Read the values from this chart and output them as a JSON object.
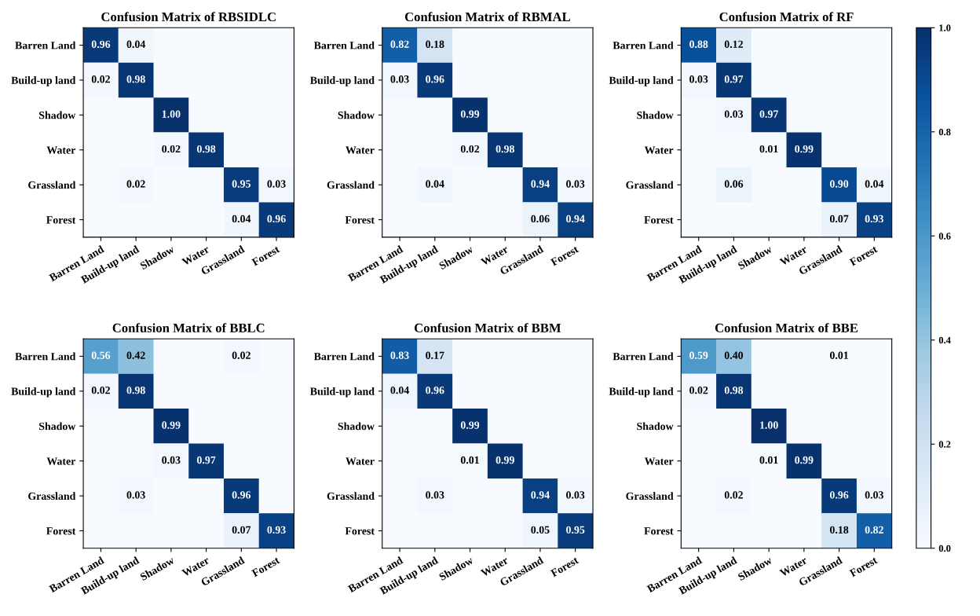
{
  "chart_data": [
    {
      "type": "heatmap",
      "title": "Confusion Matrix of RBSIDLC",
      "categories": [
        "Barren Land",
        "Build-up land",
        "Shadow",
        "Water",
        "Grassland",
        "Forest"
      ],
      "y_categories": [
        "Barren Land",
        "Build-up land",
        "Shadow",
        "Water",
        "Grassland",
        "Forest"
      ],
      "cells": [
        [
          0.96,
          0.04,
          null,
          null,
          null,
          null
        ],
        [
          0.02,
          0.98,
          null,
          null,
          null,
          null
        ],
        [
          null,
          null,
          1.0,
          null,
          null,
          null
        ],
        [
          null,
          null,
          0.02,
          0.98,
          null,
          null
        ],
        [
          null,
          0.02,
          null,
          null,
          0.95,
          0.03
        ],
        [
          null,
          null,
          null,
          null,
          0.04,
          0.96
        ]
      ],
      "cell_labels": [
        [
          "0.96",
          "0.04",
          null,
          null,
          null,
          null
        ],
        [
          "0.02",
          "0.98",
          null,
          null,
          null,
          null
        ],
        [
          null,
          null,
          "1.00",
          null,
          null,
          null
        ],
        [
          null,
          null,
          "0.02",
          "0.98",
          null,
          null
        ],
        [
          null,
          "0.02",
          null,
          null,
          "0.95",
          "0.03"
        ],
        [
          null,
          null,
          null,
          null,
          "0.04",
          "0.96"
        ]
      ]
    },
    {
      "type": "heatmap",
      "title": "Confusion Matrix of RBMAL",
      "categories": [
        "Barren Land",
        "Build-up land",
        "Shadow",
        "Water",
        "Grassland",
        "Forest"
      ],
      "y_categories": [
        "Barren Land",
        "Build-up land",
        "Shadow",
        "Water",
        "Grassland",
        "Forest"
      ],
      "cells": [
        [
          0.82,
          0.18,
          null,
          null,
          null,
          null
        ],
        [
          0.03,
          0.96,
          null,
          null,
          null,
          null
        ],
        [
          null,
          null,
          0.99,
          null,
          null,
          null
        ],
        [
          null,
          null,
          0.02,
          0.98,
          null,
          null
        ],
        [
          null,
          0.04,
          null,
          null,
          0.94,
          0.03
        ],
        [
          null,
          null,
          null,
          null,
          0.06,
          0.94
        ]
      ],
      "cell_labels": [
        [
          "0.82",
          "0.18",
          null,
          null,
          null,
          null
        ],
        [
          "0.03",
          "0.96",
          null,
          null,
          null,
          null
        ],
        [
          null,
          null,
          "0.99",
          null,
          null,
          null
        ],
        [
          null,
          null,
          "0.02",
          "0.98",
          null,
          null
        ],
        [
          null,
          "0.04",
          null,
          null,
          "0.94",
          "0.03"
        ],
        [
          null,
          null,
          null,
          null,
          "0.06",
          "0.94"
        ]
      ]
    },
    {
      "type": "heatmap",
      "title": "Confusion Matrix of RF",
      "categories": [
        "Barren Land",
        "Build-up land",
        "Shadow",
        "Water",
        "Grassland",
        "Forest"
      ],
      "y_categories": [
        "Barren Land",
        "Build-up land",
        "Shadow",
        "Water",
        "Grassland",
        "Forest"
      ],
      "cells": [
        [
          0.88,
          0.12,
          null,
          null,
          null,
          null
        ],
        [
          0.03,
          0.97,
          null,
          null,
          null,
          null
        ],
        [
          null,
          0.03,
          0.97,
          null,
          null,
          null
        ],
        [
          null,
          null,
          0.01,
          0.99,
          null,
          null
        ],
        [
          null,
          0.06,
          null,
          null,
          0.9,
          0.04
        ],
        [
          null,
          null,
          null,
          null,
          0.07,
          0.93
        ]
      ],
      "cell_labels": [
        [
          "0.88",
          "0.12",
          null,
          null,
          null,
          null
        ],
        [
          "0.03",
          "0.97",
          null,
          null,
          null,
          null
        ],
        [
          null,
          "0.03",
          "0.97",
          null,
          null,
          null
        ],
        [
          null,
          null,
          "0.01",
          "0.99",
          null,
          null
        ],
        [
          null,
          "0.06",
          null,
          null,
          "0.90",
          "0.04"
        ],
        [
          null,
          null,
          null,
          null,
          "0.07",
          "0.93"
        ]
      ]
    },
    {
      "type": "heatmap",
      "title": "Confusion Matrix of BBLC",
      "categories": [
        "Barren Land",
        "Build-up land",
        "Shadow",
        "Water",
        "Grassland",
        "Forest"
      ],
      "y_categories": [
        "Barren Land",
        "Build-up land",
        "Shadow",
        "Water",
        "Grassland",
        "Forest"
      ],
      "cells": [
        [
          0.56,
          0.42,
          null,
          null,
          0.02,
          null
        ],
        [
          0.02,
          0.98,
          null,
          null,
          null,
          null
        ],
        [
          null,
          null,
          0.99,
          null,
          null,
          null
        ],
        [
          null,
          null,
          0.03,
          0.97,
          null,
          null
        ],
        [
          null,
          0.03,
          null,
          null,
          0.96,
          null
        ],
        [
          null,
          null,
          null,
          null,
          0.07,
          0.93
        ]
      ],
      "cell_labels": [
        [
          "0.56",
          "0.42",
          null,
          null,
          "0.02",
          null
        ],
        [
          "0.02",
          "0.98",
          null,
          null,
          null,
          null
        ],
        [
          null,
          null,
          "0.99",
          null,
          null,
          null
        ],
        [
          null,
          null,
          "0.03",
          "0.97",
          null,
          null
        ],
        [
          null,
          "0.03",
          null,
          null,
          "0.96",
          null
        ],
        [
          null,
          null,
          null,
          null,
          "0.07",
          "0.93"
        ]
      ]
    },
    {
      "type": "heatmap",
      "title": "Confusion Matrix of BBM",
      "categories": [
        "Barren Land",
        "Build-up land",
        "Shadow",
        "Water",
        "Grassland",
        "Forest"
      ],
      "y_categories": [
        "Barren Land",
        "Build-up land",
        "Shadow",
        "Water",
        "Grassland",
        "Forest"
      ],
      "cells": [
        [
          0.83,
          0.17,
          null,
          null,
          null,
          null
        ],
        [
          0.04,
          0.96,
          null,
          null,
          null,
          null
        ],
        [
          null,
          null,
          0.99,
          null,
          null,
          null
        ],
        [
          null,
          null,
          0.01,
          0.99,
          null,
          null
        ],
        [
          null,
          0.03,
          null,
          null,
          0.94,
          0.03
        ],
        [
          null,
          null,
          null,
          null,
          0.05,
          0.95
        ]
      ],
      "cell_labels": [
        [
          "0.83",
          "0.17",
          null,
          null,
          null,
          null
        ],
        [
          "0.04",
          "0.96",
          null,
          null,
          null,
          null
        ],
        [
          null,
          null,
          "0.99",
          null,
          null,
          null
        ],
        [
          null,
          null,
          "0.01",
          "0.99",
          null,
          null
        ],
        [
          null,
          "0.03",
          null,
          null,
          "0.94",
          "0.03"
        ],
        [
          null,
          null,
          null,
          null,
          "0.05",
          "0.95"
        ]
      ]
    },
    {
      "type": "heatmap",
      "title": "Confusion Matrix of BBE",
      "categories": [
        "Barren Land",
        "Build-up land",
        "Shadow",
        "Water",
        "Grassland",
        "Forest"
      ],
      "y_categories": [
        "Barren Land",
        "Build-up land",
        "Shadow",
        "Water",
        "Grassland",
        "Forest"
      ],
      "clim": [
        0,
        1
      ],
      "cticks": [
        {
          "value": 0,
          "label": "0.0"
        },
        {
          "value": 0.2,
          "label": "0.2"
        },
        {
          "value": 0.4,
          "label": "0.4"
        },
        {
          "value": 0.6,
          "label": "0.6"
        },
        {
          "value": 0.8,
          "label": "0.8"
        },
        {
          "value": 1,
          "label": "1.0"
        }
      ],
      "cells": [
        [
          0.59,
          0.4,
          null,
          null,
          0.01,
          null
        ],
        [
          0.02,
          0.98,
          null,
          null,
          null,
          null
        ],
        [
          null,
          null,
          1.0,
          null,
          null,
          null
        ],
        [
          null,
          null,
          0.01,
          0.99,
          null,
          null
        ],
        [
          null,
          0.02,
          null,
          null,
          0.96,
          0.03
        ],
        [
          null,
          null,
          null,
          null,
          0.18,
          0.82
        ]
      ],
      "cell_labels": [
        [
          "0.59",
          "0.40",
          null,
          null,
          "0.01",
          null
        ],
        [
          "0.02",
          "0.98",
          null,
          null,
          null,
          null
        ],
        [
          null,
          null,
          "1.00",
          null,
          null,
          null
        ],
        [
          null,
          null,
          "0.01",
          "0.99",
          null,
          null
        ],
        [
          null,
          "0.02",
          null,
          null,
          "0.96",
          "0.03"
        ],
        [
          null,
          null,
          null,
          null,
          "0.18",
          "0.82"
        ]
      ]
    }
  ]
}
